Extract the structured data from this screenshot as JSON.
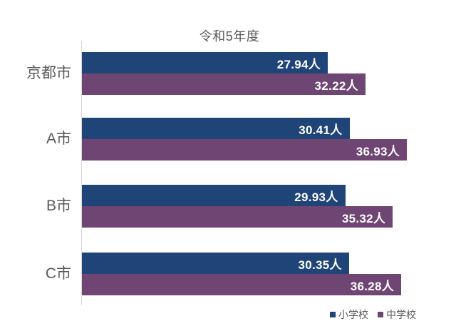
{
  "chart_data": {
    "type": "bar",
    "orientation": "horizontal",
    "title": "令和5年度",
    "categories": [
      "京都市",
      "A市",
      "B市",
      "C市"
    ],
    "series": [
      {
        "name": "小学校",
        "color": "#1F4477",
        "values": [
          27.94,
          30.41,
          29.93,
          30.35
        ],
        "labels": [
          "27.94人",
          "30.41人",
          "29.93人",
          "30.35人"
        ]
      },
      {
        "name": "中学校",
        "color": "#6F4573",
        "values": [
          32.22,
          36.93,
          35.32,
          36.28
        ],
        "labels": [
          "32.22人",
          "36.93人",
          "35.32人",
          "36.28人"
        ]
      }
    ],
    "value_suffix": "人",
    "xlim": [
      0,
      41
    ],
    "grid": false,
    "legend_position": "bottom-right",
    "axis_color": "#d9d9d9",
    "text_color": "#595959"
  }
}
